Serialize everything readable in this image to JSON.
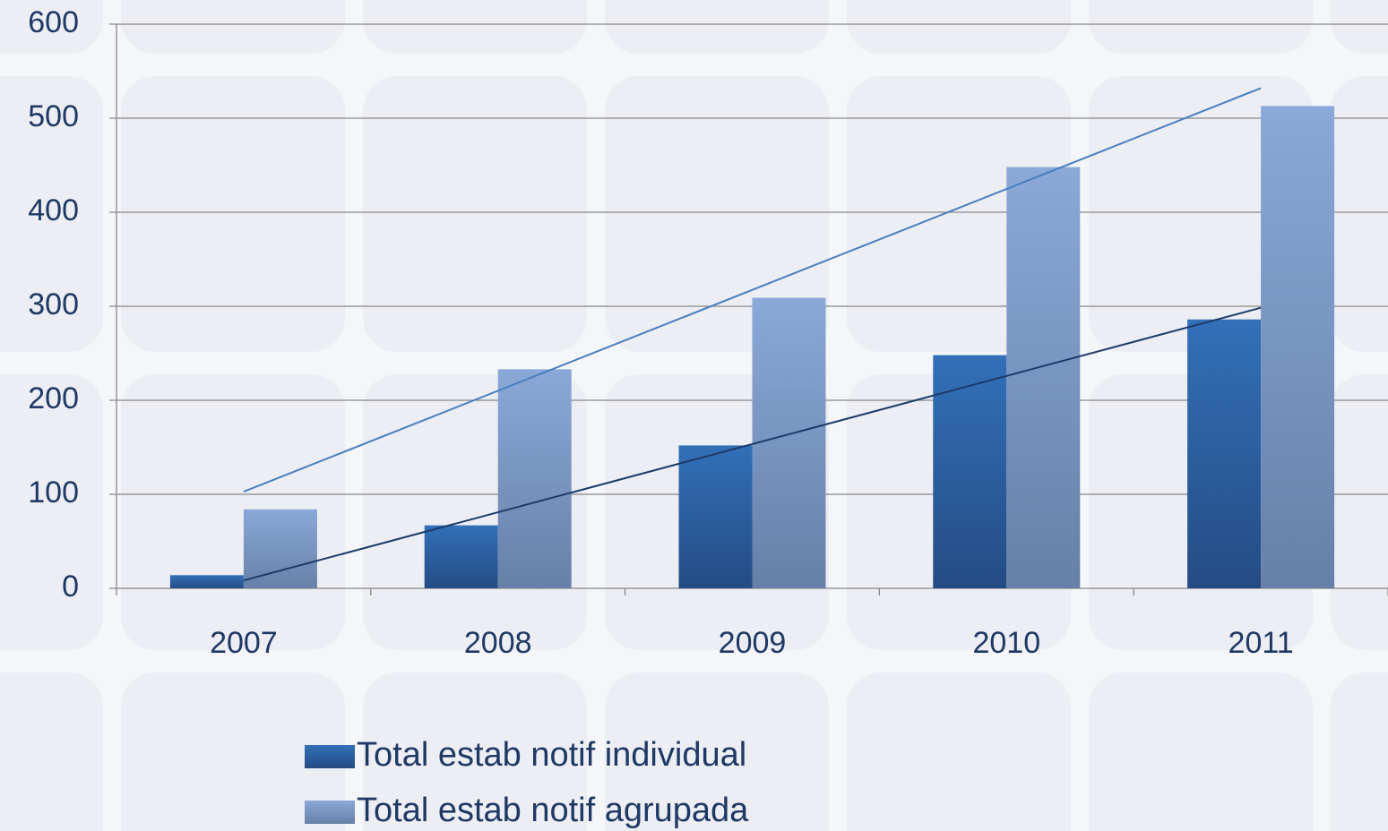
{
  "chart_data": {
    "type": "bar",
    "categories": [
      "2007",
      "2008",
      "2009",
      "2010",
      "2011"
    ],
    "series": [
      {
        "name": "Total estab notif individual",
        "color": "#2f6db5",
        "values": [
          14,
          67,
          152,
          248,
          286
        ]
      },
      {
        "name": "Total estab notif agrupada",
        "color": "#8aa8d8",
        "values": [
          84,
          233,
          309,
          448,
          513
        ]
      }
    ],
    "ylim": [
      0,
      600
    ],
    "yticks": [
      0,
      100,
      200,
      300,
      400,
      500,
      600
    ],
    "grid": true,
    "trendline": true,
    "legend": "bottom"
  }
}
